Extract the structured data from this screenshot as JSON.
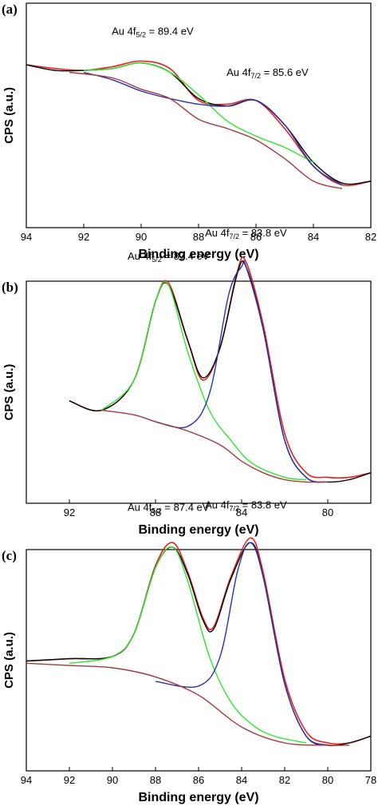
{
  "chart_data": [
    {
      "type": "line",
      "panel_label": "(a)",
      "xlabel": "Binding energy (eV)",
      "ylabel": "CPS (a.u.)",
      "xlim": [
        94,
        82
      ],
      "ylim": [
        0,
        1
      ],
      "x_ticks": [
        "94",
        "92",
        "90",
        "88",
        "86",
        "84",
        "82"
      ],
      "grid": false,
      "colors": {
        "raw": "#e8231f",
        "envelope": "#000000",
        "peak_high": "#2ee82e",
        "peak_low": "#2433b3",
        "background": "#a33a3a"
      },
      "annotations": [
        {
          "prefix": "Au 4f",
          "sub": "5/2",
          "suffix": " = 89.4 eV",
          "x": 89.6,
          "y": 0.9
        },
        {
          "prefix": "Au 4f",
          "sub": "7/2",
          "suffix": " = 85.6 eV",
          "x": 85.6,
          "y": 0.68
        }
      ],
      "series": [
        {
          "x": [
            94.0,
            93.0,
            92.0,
            91.0,
            90.0,
            89.0,
            88.0,
            87.0,
            86.0,
            85.0,
            84.0,
            83.0,
            82.0
          ],
          "y": [
            0.74,
            0.72,
            0.71,
            0.73,
            0.76,
            0.72,
            0.55,
            0.53,
            0.55,
            0.4,
            0.2,
            0.1,
            0.12
          ]
        },
        {
          "x": [
            94.0,
            93.0,
            92.0,
            91.0,
            90.0,
            89.0,
            88.0,
            87.0,
            86.0,
            85.0,
            84.0,
            83.0,
            82.0
          ],
          "y": [
            0.74,
            0.71,
            0.71,
            0.72,
            0.75,
            0.7,
            0.56,
            0.52,
            0.55,
            0.42,
            0.22,
            0.11,
            0.12
          ]
        },
        {
          "x": [
            92.0,
            91.0,
            90.0,
            89.0,
            88.0,
            87.0,
            86.0,
            85.0,
            84.0
          ],
          "y": [
            0.71,
            0.72,
            0.75,
            0.7,
            0.58,
            0.44,
            0.36,
            0.3,
            0.22
          ]
        },
        {
          "x": [
            92.0,
            91.0,
            90.0,
            89.0,
            88.0,
            87.0,
            86.0,
            85.0,
            84.0,
            83.0
          ],
          "y": [
            0.7,
            0.66,
            0.6,
            0.56,
            0.53,
            0.52,
            0.55,
            0.42,
            0.2,
            0.1
          ]
        },
        {
          "x": [
            92.5,
            91.0,
            90.0,
            89.0,
            88.0,
            87.0,
            86.0,
            85.0,
            84.0,
            83.0
          ],
          "y": [
            0.7,
            0.67,
            0.61,
            0.56,
            0.45,
            0.4,
            0.34,
            0.24,
            0.12,
            0.08
          ]
        }
      ]
    },
    {
      "type": "line",
      "panel_label": "(b)",
      "xlabel": "Binding energy (eV)",
      "ylabel": "CPS (a.u.)",
      "xlim": [
        94,
        78
      ],
      "ylim": [
        0,
        1
      ],
      "x_ticks": [
        "92",
        "88",
        "84",
        "80"
      ],
      "grid": false,
      "colors": {
        "raw": "#e8231f",
        "envelope": "#000000",
        "peak_high": "#2ee82e",
        "peak_low": "#2433b3",
        "background": "#a33a3a"
      },
      "annotations": [
        {
          "prefix": "Au 4f",
          "sub": "5/2",
          "suffix": " = 87.4 eV",
          "x": 87.4,
          "y": 1.0
        },
        {
          "prefix": "Au 4f",
          "sub": "7/2",
          "suffix": " = 83.8 eV",
          "x": 83.8,
          "y": 1.1
        }
      ],
      "series": [
        {
          "x": [
            92.0,
            90.5,
            89.0,
            88.0,
            87.4,
            86.5,
            85.8,
            85.0,
            84.2,
            83.8,
            83.0,
            82.0,
            81.0,
            80.0,
            79.0,
            78.0
          ],
          "y": [
            0.39,
            0.35,
            0.48,
            0.82,
            0.9,
            0.65,
            0.48,
            0.62,
            0.95,
            0.99,
            0.72,
            0.25,
            0.08,
            0.06,
            0.06,
            0.08
          ]
        },
        {
          "x": [
            92.0,
            90.5,
            89.0,
            88.0,
            87.4,
            86.5,
            85.8,
            85.0,
            84.2,
            83.8,
            83.0,
            82.0,
            81.0,
            80.0,
            79.0,
            78.0
          ],
          "y": [
            0.39,
            0.35,
            0.48,
            0.82,
            0.89,
            0.65,
            0.49,
            0.62,
            0.94,
            0.97,
            0.7,
            0.22,
            0.06,
            0.04,
            0.05,
            0.08
          ]
        },
        {
          "x": [
            90.5,
            89.0,
            88.0,
            87.4,
            86.5,
            85.5,
            84.5,
            83.5,
            82.0,
            81.0
          ],
          "y": [
            0.35,
            0.48,
            0.82,
            0.89,
            0.6,
            0.35,
            0.22,
            0.12,
            0.06,
            0.05
          ]
        },
        {
          "x": [
            88.0,
            86.5,
            85.5,
            84.6,
            84.0,
            83.8,
            83.0,
            82.0,
            81.0,
            80.0
          ],
          "y": [
            0.3,
            0.28,
            0.42,
            0.85,
            0.97,
            0.97,
            0.7,
            0.22,
            0.06,
            0.04
          ]
        },
        {
          "x": [
            90.5,
            89.0,
            88.0,
            86.5,
            85.0,
            84.0,
            83.0,
            82.0,
            81.0,
            80.0
          ],
          "y": [
            0.35,
            0.33,
            0.3,
            0.26,
            0.2,
            0.13,
            0.08,
            0.05,
            0.04,
            0.04
          ]
        }
      ]
    },
    {
      "type": "line",
      "panel_label": "(c)",
      "xlabel": "Binding energy (eV)",
      "ylabel": "CPS (a.u.)",
      "xlim": [
        94,
        78
      ],
      "ylim": [
        0,
        1
      ],
      "x_ticks": [
        "94",
        "92",
        "90",
        "88",
        "86",
        "84",
        "82",
        "80",
        "78"
      ],
      "grid": false,
      "colors": {
        "raw": "#e8231f",
        "envelope": "#000000",
        "peak_high": "#2ee82e",
        "peak_low": "#2433b3",
        "background": "#a33a3a"
      },
      "annotations": [
        {
          "prefix": "Au 4f",
          "sub": "5/2",
          "suffix": " = 87.4 eV",
          "x": 87.4,
          "y": 1.09
        },
        {
          "prefix": "Au 4f",
          "sub": "7/2",
          "suffix": " = 83.8 eV",
          "x": 83.8,
          "y": 1.1
        }
      ],
      "series": [
        {
          "x": [
            94.0,
            92.0,
            90.0,
            89.0,
            88.0,
            87.2,
            86.5,
            85.8,
            85.3,
            84.5,
            83.6,
            83.0,
            82.0,
            81.0,
            80.0,
            79.0,
            78.0
          ],
          "y": [
            0.43,
            0.44,
            0.45,
            0.55,
            0.85,
            0.95,
            0.82,
            0.62,
            0.58,
            0.8,
            0.97,
            0.82,
            0.35,
            0.12,
            0.07,
            0.07,
            0.1
          ]
        },
        {
          "x": [
            94.0,
            92.0,
            90.0,
            89.0,
            88.0,
            87.2,
            86.5,
            85.8,
            85.3,
            84.5,
            83.6,
            83.0,
            82.0,
            81.0,
            80.0,
            79.0,
            78.0
          ],
          "y": [
            0.43,
            0.44,
            0.45,
            0.55,
            0.84,
            0.93,
            0.81,
            0.61,
            0.57,
            0.79,
            0.95,
            0.8,
            0.33,
            0.1,
            0.06,
            0.07,
            0.1
          ]
        },
        {
          "x": [
            92.0,
            90.0,
            89.0,
            88.0,
            87.2,
            86.5,
            85.5,
            84.5,
            83.5,
            82.5,
            81.0
          ],
          "y": [
            0.42,
            0.45,
            0.55,
            0.84,
            0.93,
            0.78,
            0.45,
            0.25,
            0.15,
            0.1,
            0.07
          ]
        },
        {
          "x": [
            88.0,
            86.0,
            85.0,
            84.2,
            83.6,
            83.0,
            82.0,
            81.0,
            80.0
          ],
          "y": [
            0.34,
            0.32,
            0.45,
            0.82,
            0.95,
            0.8,
            0.33,
            0.1,
            0.06
          ]
        },
        {
          "x": [
            94.0,
            92.0,
            90.0,
            88.0,
            86.0,
            84.0,
            82.0,
            80.0,
            79.0
          ],
          "y": [
            0.42,
            0.41,
            0.4,
            0.36,
            0.28,
            0.14,
            0.07,
            0.06,
            0.06
          ]
        }
      ]
    }
  ]
}
